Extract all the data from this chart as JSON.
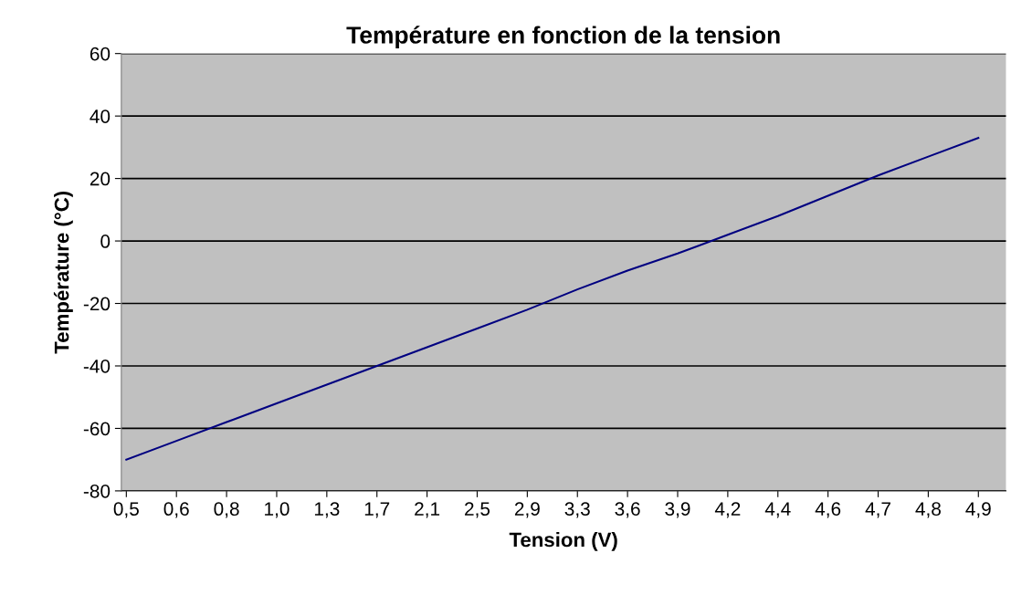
{
  "chart_data": {
    "type": "line",
    "title": "Température en fonction de la tension",
    "xlabel": "Tension (V)",
    "ylabel": "Température (°C)",
    "categories": [
      "0,5",
      "0,6",
      "0,8",
      "1,0",
      "1,3",
      "1,7",
      "2,1",
      "2,5",
      "2,9",
      "3,3",
      "3,6",
      "3,9",
      "4,2",
      "4,4",
      "4,6",
      "4,7",
      "4,8",
      "4,9"
    ],
    "series": [
      {
        "color": "#000080",
        "values": [
          -70,
          -64,
          -58,
          -52,
          -46,
          -40,
          -34,
          -28,
          -22,
          -15.5,
          -9.5,
          -4,
          2,
          8,
          14.5,
          21,
          27,
          33
        ]
      }
    ],
    "ylim": [
      -80,
      60
    ],
    "yticks": [
      -80,
      -60,
      -40,
      -20,
      0,
      20,
      40,
      60
    ],
    "grid": "y",
    "legend": false,
    "marker": "none",
    "line_style": "solid"
  }
}
